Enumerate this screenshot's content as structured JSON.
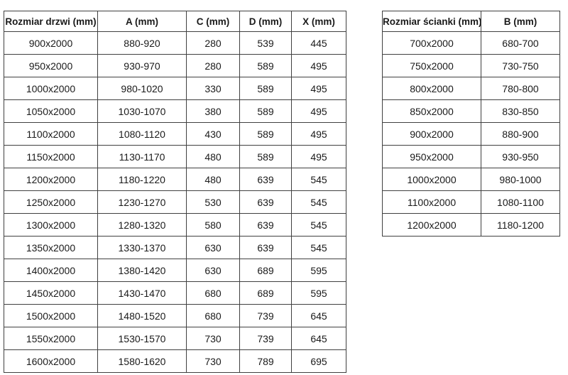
{
  "colors": {
    "border": "#404040",
    "text": "#1a1a1a",
    "background": "#ffffff"
  },
  "tables": {
    "doors": {
      "columns": [
        "Rozmiar drzwi (mm)",
        "A (mm)",
        "C (mm)",
        "D (mm)",
        "X (mm)"
      ],
      "rows": [
        [
          "900x2000",
          "880-920",
          "280",
          "539",
          "445"
        ],
        [
          "950x2000",
          "930-970",
          "280",
          "589",
          "495"
        ],
        [
          "1000x2000",
          "980-1020",
          "330",
          "589",
          "495"
        ],
        [
          "1050x2000",
          "1030-1070",
          "380",
          "589",
          "495"
        ],
        [
          "1100x2000",
          "1080-1120",
          "430",
          "589",
          "495"
        ],
        [
          "1150x2000",
          "1130-1170",
          "480",
          "589",
          "495"
        ],
        [
          "1200x2000",
          "1180-1220",
          "480",
          "639",
          "545"
        ],
        [
          "1250x2000",
          "1230-1270",
          "530",
          "639",
          "545"
        ],
        [
          "1300x2000",
          "1280-1320",
          "580",
          "639",
          "545"
        ],
        [
          "1350x2000",
          "1330-1370",
          "630",
          "639",
          "545"
        ],
        [
          "1400x2000",
          "1380-1420",
          "630",
          "689",
          "595"
        ],
        [
          "1450x2000",
          "1430-1470",
          "680",
          "689",
          "595"
        ],
        [
          "1500x2000",
          "1480-1520",
          "680",
          "739",
          "645"
        ],
        [
          "1550x2000",
          "1530-1570",
          "730",
          "739",
          "645"
        ],
        [
          "1600x2000",
          "1580-1620",
          "730",
          "789",
          "695"
        ]
      ]
    },
    "walls": {
      "columns": [
        "Rozmiar ścianki (mm)",
        "B (mm)"
      ],
      "rows": [
        [
          "700x2000",
          "680-700"
        ],
        [
          "750x2000",
          "730-750"
        ],
        [
          "800x2000",
          "780-800"
        ],
        [
          "850x2000",
          "830-850"
        ],
        [
          "900x2000",
          "880-900"
        ],
        [
          "950x2000",
          "930-950"
        ],
        [
          "1000x2000",
          "980-1000"
        ],
        [
          "1100x2000",
          "1080-1100"
        ],
        [
          "1200x2000",
          "1180-1200"
        ]
      ]
    }
  }
}
